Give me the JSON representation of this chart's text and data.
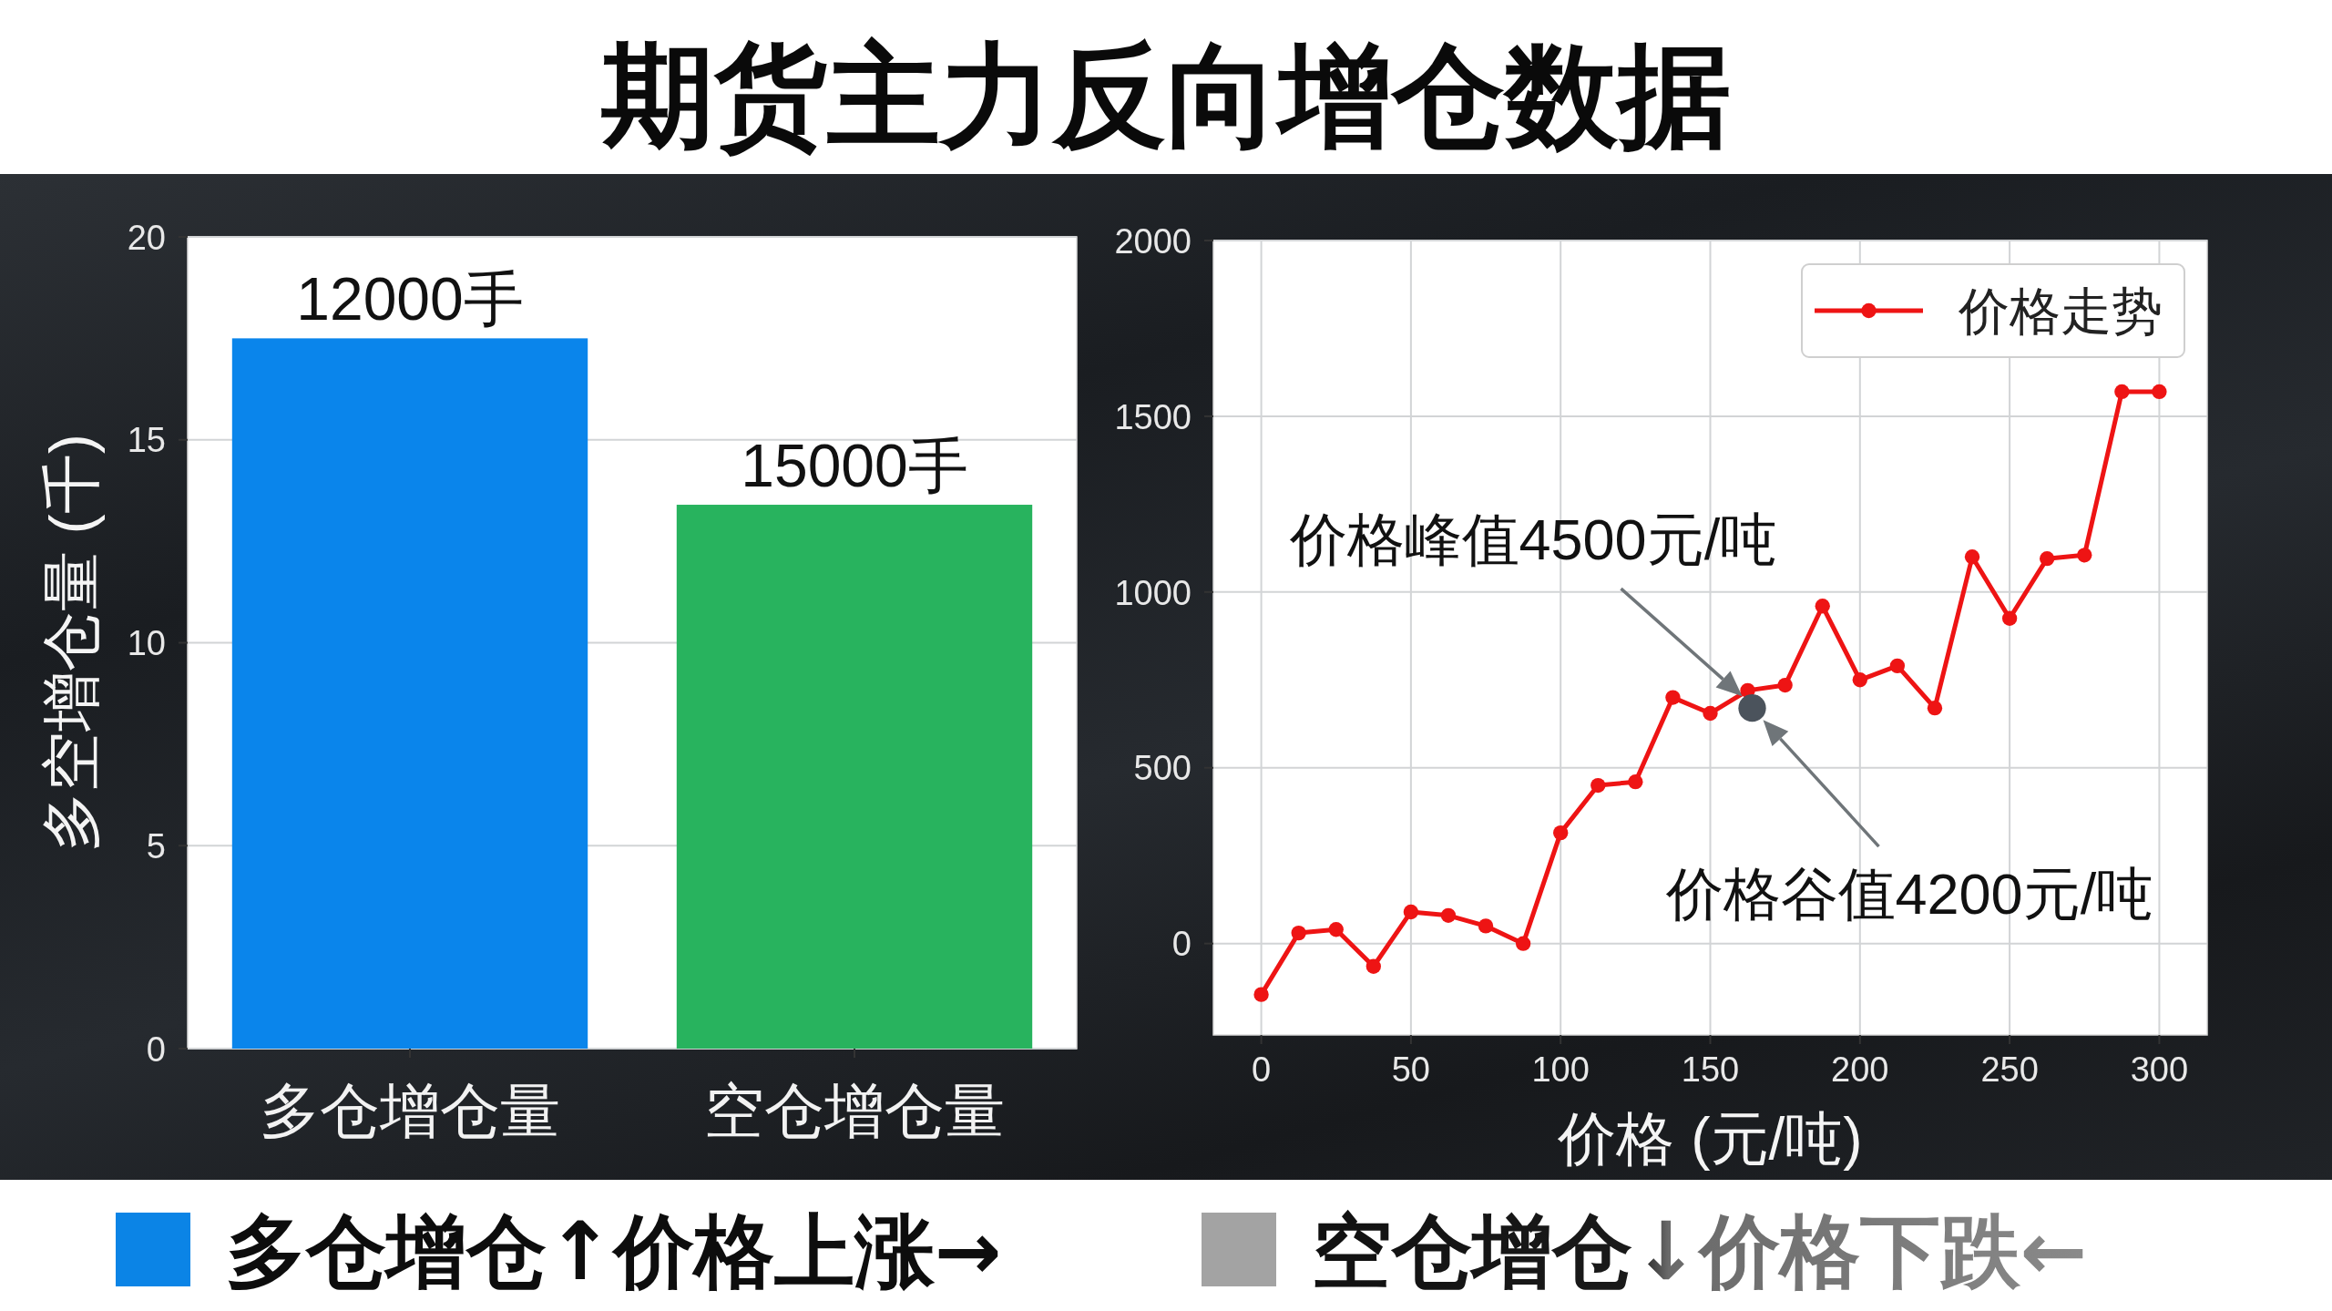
{
  "chart_data": [
    {
      "type": "bar",
      "title": "期货主力反向增仓数据",
      "categories": [
        "多仓增仓量",
        "空仓增仓量"
      ],
      "values": [
        17.5,
        13.4
      ],
      "colors": [
        "#0a85eb",
        "#28b35e"
      ],
      "ylabel": "多空增仓量 (千)",
      "ylim": [
        0,
        20
      ],
      "yticks": [
        0,
        5,
        10,
        15,
        20
      ],
      "grid": "y",
      "annotations": [
        {
          "text": "12000手",
          "x": "多仓增仓量",
          "y": 17.5
        },
        {
          "text": "15000手",
          "x": "空仓增仓量",
          "y": 13.4
        },
        "多仓增仓↑价格上涨→",
        "空仓增仓↓价格下跌←"
      ]
    },
    {
      "type": "line",
      "x": [
        0,
        12.5,
        25,
        37.5,
        50,
        62.5,
        75,
        87.5,
        100,
        112.5,
        125,
        137.5,
        150,
        162.5,
        175,
        187.5,
        200,
        212.5,
        225,
        237.5,
        250,
        262.5,
        275,
        287.5,
        300
      ],
      "series": [
        {
          "name": "价格走势",
          "color": "#ee1414",
          "values": [
            -145,
            30,
            40,
            -65,
            90,
            80,
            50,
            0,
            315,
            450,
            460,
            700,
            655,
            720,
            735,
            960,
            750,
            790,
            670,
            1100,
            925,
            1095,
            1105,
            1570,
            1570
          ]
        },
        {
          "type": "scatter",
          "color": "#4b535c",
          "x": [
            164
          ],
          "values": [
            670
          ]
        }
      ],
      "xlabel": "价格 (元/吨)",
      "xlim": [
        -16,
        316
      ],
      "ylim": [
        -260,
        2000
      ],
      "xticks": [
        0,
        50,
        100,
        150,
        200,
        250,
        300
      ],
      "yticks": [
        0,
        500,
        1000,
        1500,
        2000
      ],
      "grid": true,
      "legend": "top right",
      "marker": "circle",
      "annotations": [
        {
          "text": "价格峰值4500元/吨",
          "x": 164,
          "y": 670
        },
        {
          "text": "价格谷值4200元/吨",
          "x": 164,
          "y": 670
        }
      ]
    }
  ]
}
